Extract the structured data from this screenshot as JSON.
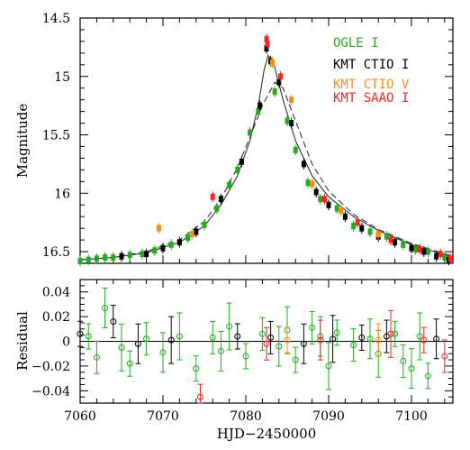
{
  "chart_data": [
    {
      "type": "scatter",
      "panel": "light-curve",
      "xlabel": "",
      "ylabel": "Magnitude",
      "xlim": [
        7060,
        7105
      ],
      "ylim": [
        16.6,
        14.5
      ],
      "y_inverted": true,
      "x_ticks": [
        7060,
        7070,
        7080,
        7090,
        7100
      ],
      "y_ticks": [
        "14.5",
        "15",
        "15.5",
        "16",
        "16.5"
      ],
      "legend_position": "top-right",
      "series": [
        {
          "name": "OGLE I",
          "color": "#22aa22",
          "x": [
            7060,
            7061,
            7062,
            7063,
            7064,
            7066,
            7067.5,
            7069,
            7071,
            7073,
            7075,
            7076.5,
            7078,
            7079,
            7080.5,
            7081.5,
            7083.5,
            7085,
            7086,
            7087.5,
            7089,
            7091,
            7093,
            7095,
            7097,
            7099,
            7100.5,
            7102,
            7104
          ],
          "y": [
            16.58,
            16.57,
            16.56,
            16.55,
            16.55,
            16.53,
            16.52,
            16.49,
            16.44,
            16.38,
            16.27,
            16.13,
            15.93,
            15.8,
            15.48,
            15.3,
            15.13,
            15.38,
            15.63,
            15.91,
            16.05,
            16.13,
            16.28,
            16.33,
            16.37,
            16.44,
            16.48,
            16.5,
            16.55
          ]
        },
        {
          "name": "KMT CTIO I",
          "color": "#000000",
          "x": [
            7065,
            7068,
            7070,
            7072,
            7074,
            7077,
            7079.5,
            7081.7,
            7082.5,
            7083,
            7084,
            7085.5,
            7087,
            7088.5,
            7090,
            7092,
            7094,
            7096,
            7098,
            7100,
            7101.5,
            7103,
            7104.5
          ],
          "y": [
            16.54,
            16.52,
            16.47,
            16.42,
            16.33,
            16.05,
            15.73,
            15.25,
            14.76,
            14.87,
            15.05,
            15.4,
            15.75,
            15.99,
            16.1,
            16.2,
            16.3,
            16.37,
            16.42,
            16.47,
            16.5,
            16.54,
            16.57
          ]
        },
        {
          "name": "KMT CTIO V",
          "color": "#ff8c1a",
          "x": [
            7069.5,
            7073.5,
            7083.2,
            7085.5,
            7088,
            7091.5,
            7096
          ],
          "y": [
            16.3,
            16.35,
            14.88,
            15.2,
            15.92,
            16.15,
            16.35
          ]
        },
        {
          "name": "KMT SAAO I",
          "color": "#ff2222",
          "x": [
            7076,
            7082.5,
            7082.6,
            7084.2,
            7089.5,
            7093.5,
            7097.5,
            7101,
            7103.5,
            7104.7
          ],
          "y": [
            16.03,
            14.68,
            14.72,
            15.0,
            16.05,
            16.25,
            16.4,
            16.48,
            16.52,
            16.56
          ]
        }
      ],
      "model_solid": {
        "x": [
          7060,
          7064,
          7068,
          7072,
          7075,
          7077,
          7079,
          7080.5,
          7081.5,
          7082.2,
          7082.7,
          7083.4,
          7084.5,
          7086,
          7088,
          7090,
          7093,
          7096,
          7100,
          7105
        ],
        "y": [
          16.57,
          16.55,
          16.51,
          16.42,
          16.28,
          16.1,
          15.85,
          15.55,
          15.25,
          14.95,
          14.82,
          14.9,
          15.2,
          15.55,
          15.85,
          16.03,
          16.2,
          16.32,
          16.44,
          16.55
        ]
      },
      "model_dashed": {
        "x": [
          7060,
          7064,
          7068,
          7072,
          7075,
          7077,
          7079,
          7080.5,
          7082,
          7083.5,
          7084.5,
          7086,
          7088,
          7090,
          7093,
          7096,
          7100,
          7105
        ],
        "y": [
          16.57,
          16.55,
          16.5,
          16.4,
          16.24,
          16.05,
          15.78,
          15.52,
          15.25,
          15.05,
          15.1,
          15.38,
          15.75,
          15.98,
          16.18,
          16.31,
          16.43,
          16.54
        ]
      }
    },
    {
      "type": "scatter",
      "panel": "residual",
      "xlabel": "HJD−2450000",
      "ylabel": "Residual",
      "xlim": [
        7060,
        7105
      ],
      "ylim": [
        -0.05,
        0.05
      ],
      "x_ticks": [
        7060,
        7070,
        7080,
        7090,
        7100
      ],
      "y_ticks": [
        "0.04",
        "0.02",
        "0",
        "−0.02",
        "−0.04"
      ],
      "series": [
        {
          "name": "OGLE I",
          "color": "#22aa22",
          "x": [
            7061,
            7062,
            7063,
            7065,
            7066,
            7068,
            7070,
            7072,
            7074,
            7076,
            7077,
            7078,
            7080,
            7082,
            7084,
            7085,
            7086,
            7088,
            7089,
            7090,
            7091,
            7093,
            7095,
            7096,
            7098,
            7099,
            7100,
            7101,
            7102
          ],
          "y": [
            0.004,
            -0.013,
            0.027,
            -0.005,
            -0.018,
            0.002,
            -0.009,
            0.004,
            -0.022,
            0.003,
            -0.008,
            0.012,
            -0.012,
            0.006,
            -0.004,
            0.009,
            -0.015,
            0.011,
            0.004,
            -0.02,
            0.007,
            -0.003,
            0.002,
            -0.01,
            0.006,
            -0.016,
            -0.022,
            0.004,
            -0.028
          ]
        },
        {
          "name": "KMT CTIO I",
          "color": "#000000",
          "x": [
            7060,
            7064,
            7067,
            7071,
            7079,
            7083,
            7087,
            7090.5,
            7094,
            7097,
            7103
          ],
          "y": [
            0.006,
            0.016,
            -0.002,
            0.001,
            0.004,
            0.003,
            -0.002,
            0.002,
            0.003,
            0.004,
            0.002
          ]
        },
        {
          "name": "KMT CTIO V",
          "color": "#ff8c1a",
          "x": [
            7085,
            7096
          ],
          "y": [
            0.001,
            0.001
          ]
        },
        {
          "name": "KMT SAAO I",
          "color": "#ff2222",
          "x": [
            7074.5,
            7082.5,
            7089,
            7097.5,
            7101.5,
            7104
          ],
          "y": [
            -0.045,
            -0.002,
            0.001,
            0.006,
            0.001,
            -0.012
          ]
        }
      ]
    }
  ],
  "legend": [
    {
      "label": "OGLE I",
      "color": "#22aa22"
    },
    {
      "label": "KMT CTIO I",
      "color": "#000000"
    },
    {
      "label": "KMT CTIO V",
      "color": "#ff8c1a"
    },
    {
      "label": "KMT SAAO I",
      "color": "#ff2222"
    }
  ]
}
